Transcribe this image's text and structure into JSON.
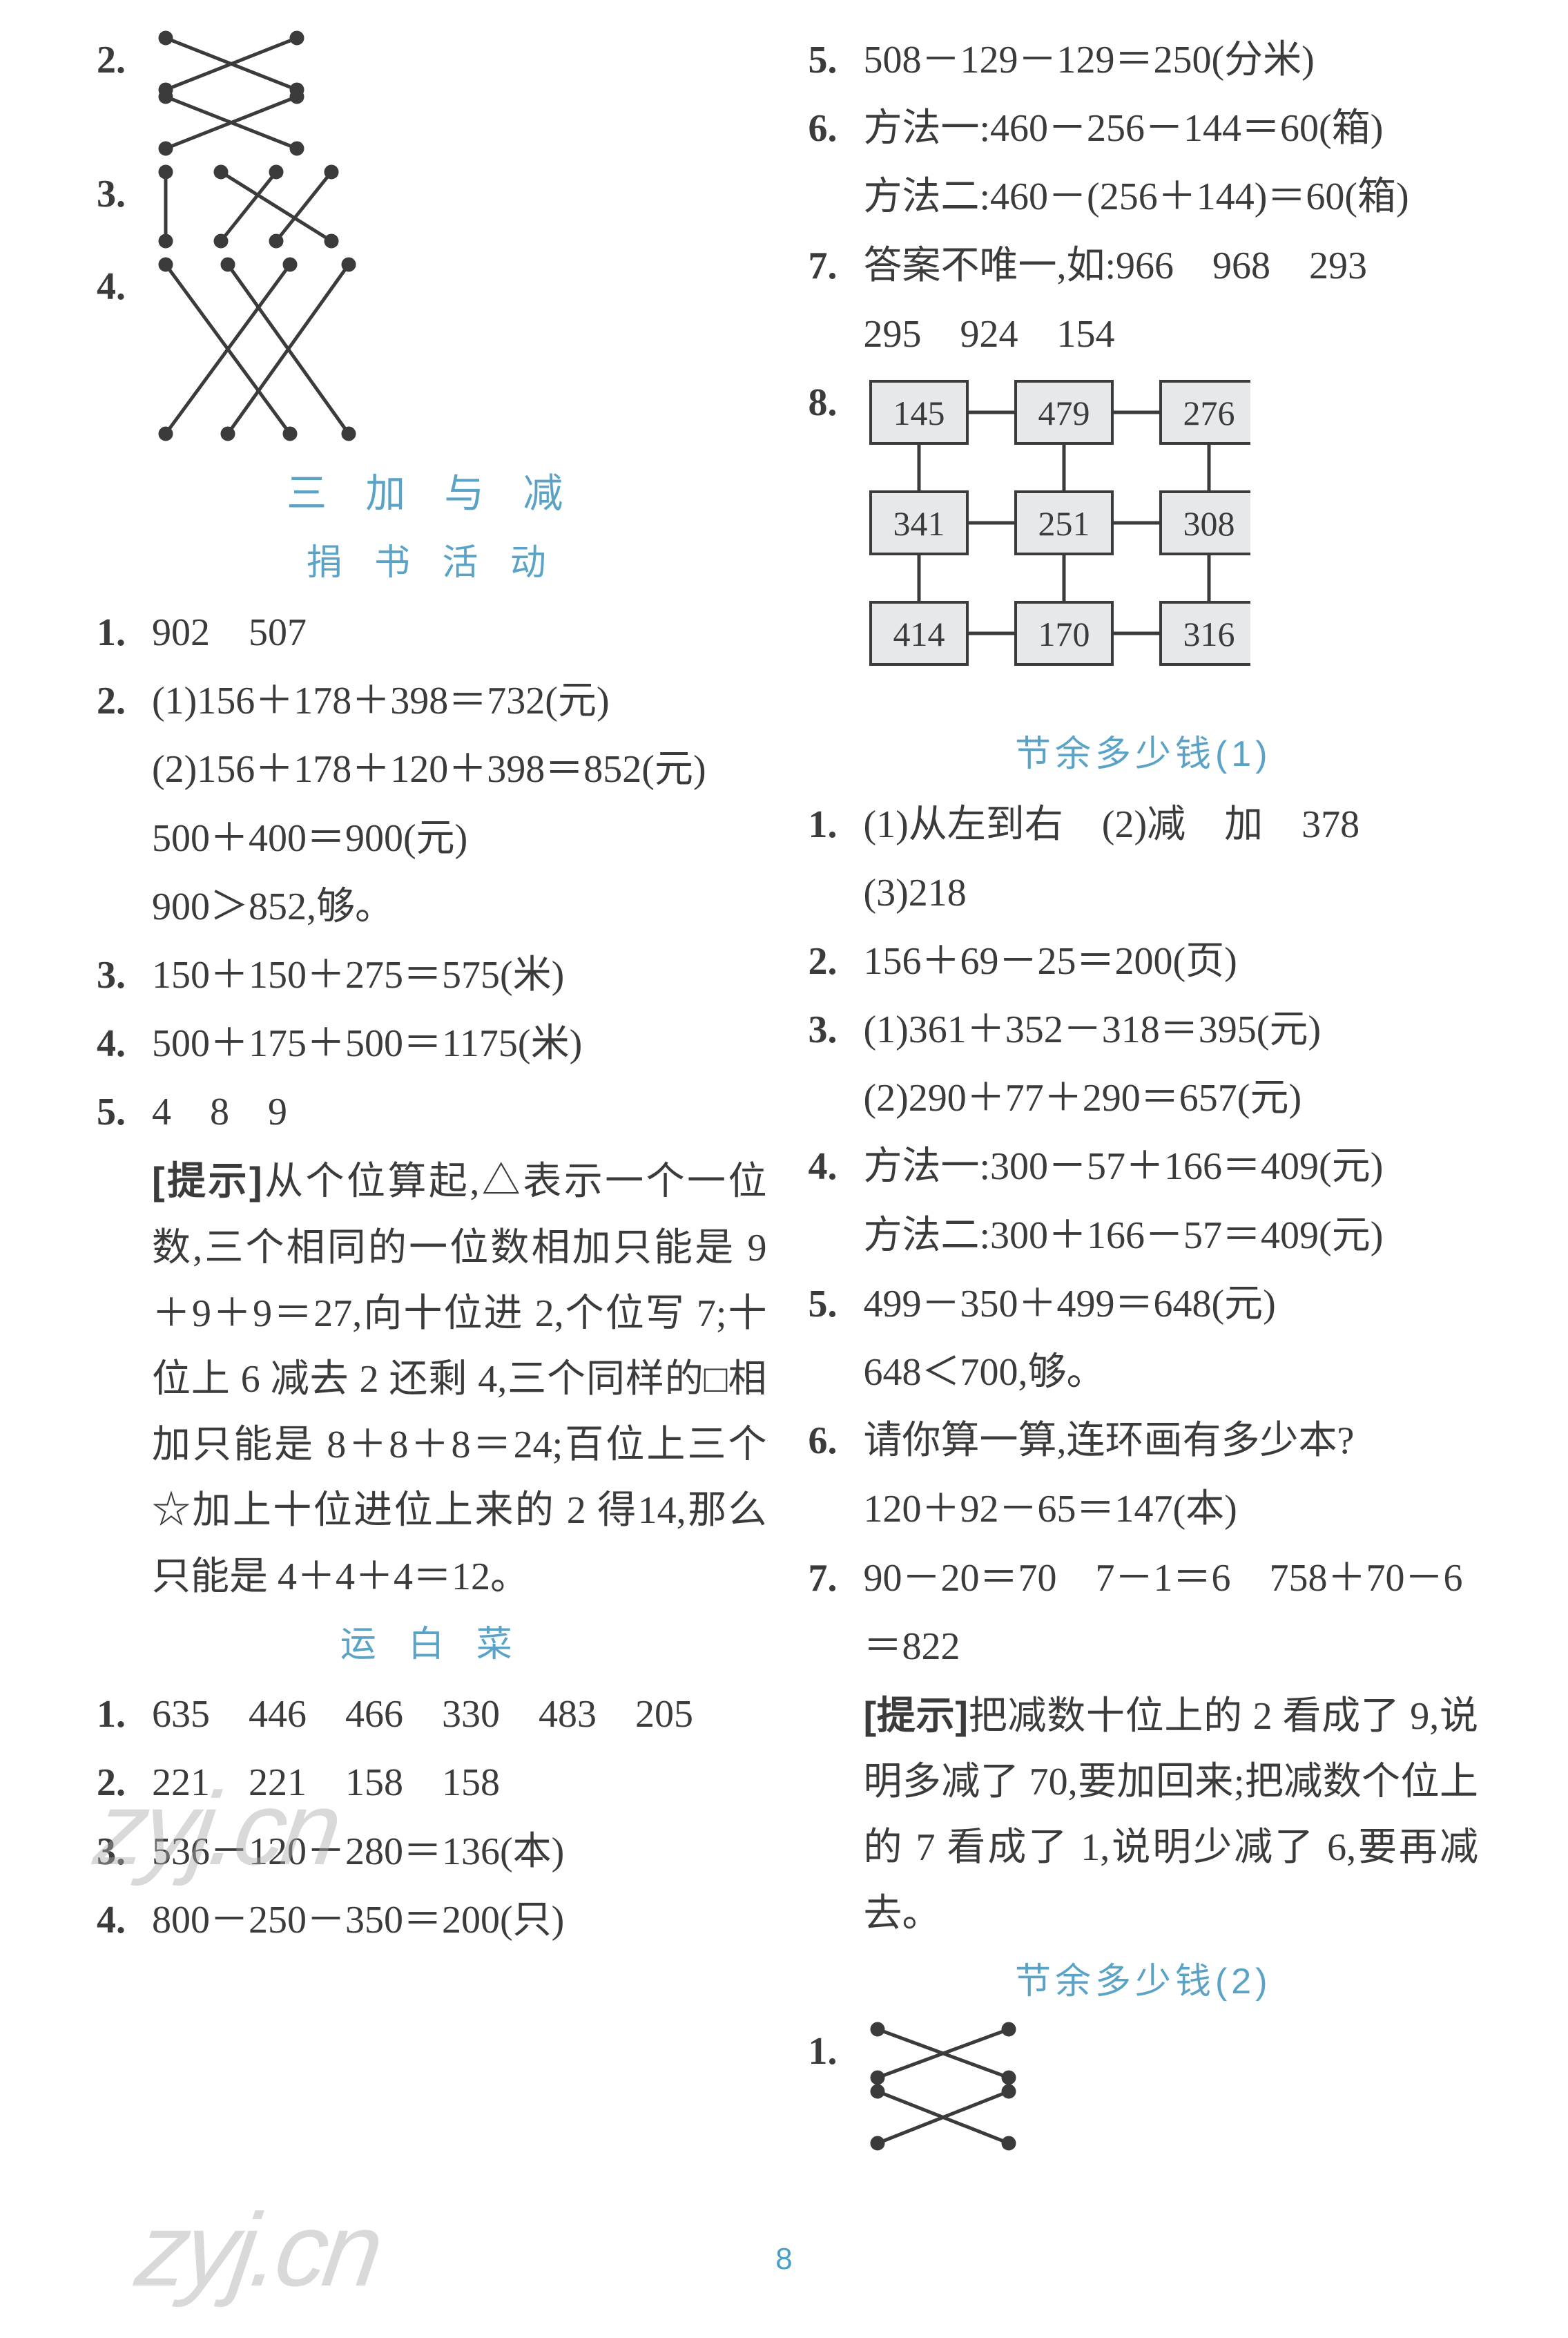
{
  "pageNumber": "8",
  "watermark": "zyj.cn",
  "left": {
    "cross2": {
      "num": "2."
    },
    "cross3": {
      "num": "3."
    },
    "cross4": {
      "num": "4."
    },
    "sec3_title": "三  加  与  减",
    "sub_juanshu": "捐 书 活 动",
    "q1": {
      "num": "1.",
      "text": "902　507"
    },
    "q2": {
      "num": "2.",
      "l1": "(1)156＋178＋398＝732(元)",
      "l2": "(2)156＋178＋120＋398＝852(元)",
      "l3": "500＋400＝900(元)",
      "l4": "900＞852,够。"
    },
    "q3": {
      "num": "3.",
      "text": "150＋150＋275＝575(米)"
    },
    "q4": {
      "num": "4.",
      "text": "500＋175＋500＝1175(米)"
    },
    "q5": {
      "num": "5.",
      "l1": "4　8　9",
      "hint_label": "[提示]",
      "hint_text": "从个位算起,△表示一个一位数,三个相同的一位数相加只能是 9＋9＋9＝27,向十位进 2,个位写 7;十位上 6 减去 2 还剩 4,三个同样的□相加只能是 8＋8＋8＝24;百位上三个☆加上十位进位上来的 2 得14,那么只能是 4＋4＋4＝12。"
    },
    "sub_baicai": "运  白  菜",
    "b1": {
      "num": "1.",
      "text": "635　446　466　330　483　205"
    },
    "b2": {
      "num": "2.",
      "text": "221　221　158　158"
    },
    "b3": {
      "num": "3.",
      "text": "536－120－280＝136(本)"
    },
    "b4": {
      "num": "4.",
      "text": "800－250－350＝200(只)"
    }
  },
  "right": {
    "r5": {
      "num": "5.",
      "text": "508－129－129＝250(分米)"
    },
    "r6": {
      "num": "6.",
      "l1": "方法一:460－256－144＝60(箱)",
      "l2": "方法二:460－(256＋144)＝60(箱)"
    },
    "r7": {
      "num": "7.",
      "l1": "答案不唯一,如:966　968　293",
      "l2": "295　924　154"
    },
    "r8": {
      "num": "8.",
      "grid": {
        "bg": "#e7e8ea",
        "line": "#3b3b3b",
        "cells": [
          [
            "145",
            "479",
            "276"
          ],
          [
            "341",
            "251",
            "308"
          ],
          [
            "414",
            "170",
            "316"
          ]
        ]
      }
    },
    "sub_jieyu1": "节余多少钱(1)",
    "j1": {
      "num": "1.",
      "l1": "(1)从左到右　(2)减　加　378",
      "l2": "(3)218"
    },
    "j2": {
      "num": "2.",
      "text": "156＋69－25＝200(页)"
    },
    "j3": {
      "num": "3.",
      "l1": "(1)361＋352－318＝395(元)",
      "l2": "(2)290＋77＋290＝657(元)"
    },
    "j4": {
      "num": "4.",
      "l1": "方法一:300－57＋166＝409(元)",
      "l2": "方法二:300＋166－57＝409(元)"
    },
    "j5": {
      "num": "5.",
      "l1": "499－350＋499＝648(元)",
      "l2": "648＜700,够。"
    },
    "j6": {
      "num": "6.",
      "l1": "请你算一算,连环画有多少本?",
      "l2": "120＋92－65＝147(本)"
    },
    "j7": {
      "num": "7.",
      "l1": "90－20＝70　7－1＝6　758＋70－6",
      "l2": "＝822",
      "hint_label": "[提示]",
      "hint_text": "把减数十位上的 2 看成了 9,说明多减了 70,要加回来;把减数个位上的 7 看成了 1,说明少减了 6,要再减去。"
    },
    "sub_jieyu2": "节余多少钱(2)",
    "k1": {
      "num": "1."
    }
  },
  "colors": {
    "text": "#3b3b3b",
    "accent": "#5aa3c7",
    "gridBg": "#e7e8ea"
  }
}
